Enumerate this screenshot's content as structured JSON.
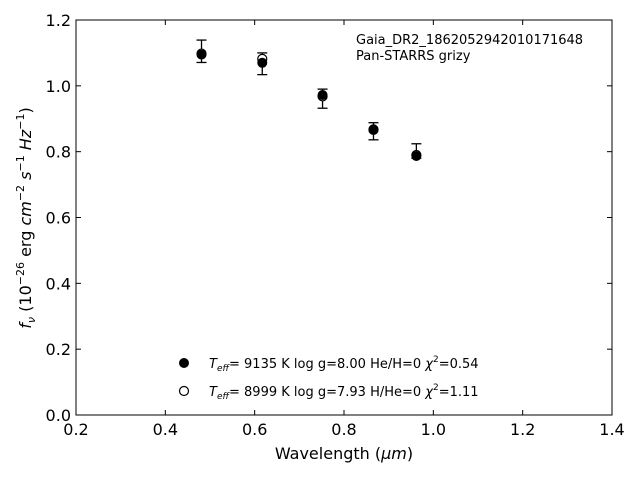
{
  "chart_data": {
    "type": "scatter",
    "xlabel_prefix": "Wavelength (",
    "xlabel_unit": "μm",
    "xlabel_suffix": ")",
    "ylabel_sym": "f",
    "ylabel_sub": "ν",
    "ylabel_pre": " (10",
    "ylabel_exp": "−26",
    "ylabel_erg": " erg ",
    "ylabel_cm": "cm",
    "ylabel_cm_exp": "−2",
    "ylabel_s": "s",
    "ylabel_s_exp": "−1",
    "ylabel_hz": "Hz",
    "ylabel_hz_exp": "−1",
    "ylabel_close": ")",
    "xlim": [
      0.2,
      1.4
    ],
    "ylim": [
      0.0,
      1.2
    ],
    "xticks": [
      "0.2",
      "0.4",
      "0.6",
      "0.8",
      "1.0",
      "1.2",
      "1.4"
    ],
    "yticks": [
      "0.0",
      "0.2",
      "0.4",
      "0.6",
      "0.8",
      "1.0",
      "1.2"
    ],
    "annotation": [
      "Gaia_DR2_1862052942010171648",
      "Pan-STARRS grizy"
    ],
    "series": [
      {
        "marker": "filled-circle",
        "x": [
          0.481,
          0.617,
          0.752,
          0.866,
          0.962
        ],
        "y": [
          1.095,
          1.07,
          0.972,
          0.868,
          0.787
        ]
      },
      {
        "marker": "open-circle",
        "x": [
          0.481,
          0.617,
          0.752,
          0.866,
          0.962
        ],
        "y": [
          1.098,
          1.082,
          0.968,
          0.866,
          0.79
        ]
      }
    ],
    "observed": {
      "x": [
        0.481,
        0.617,
        0.752,
        0.866,
        0.962
      ],
      "y": [
        1.105,
        1.067,
        0.961,
        0.862,
        0.802
      ],
      "err": [
        0.034,
        0.033,
        0.029,
        0.026,
        0.022
      ]
    },
    "legend": [
      {
        "marker": "filled-circle",
        "t": "T",
        "t_sub": "eff",
        "t_rest": "=  9135 K  log g=8.00  He/H=0  ",
        "chi": "χ",
        "chi_exp": "2",
        "chi_rest": "=0.54"
      },
      {
        "marker": "open-circle",
        "t": "T",
        "t_sub": "eff",
        "t_rest": "=  8999 K  log g=7.93  H/He=0  ",
        "chi": "χ",
        "chi_exp": "2",
        "chi_rest": "=1.11"
      }
    ],
    "legend_location": "lower-center",
    "grid": false
  }
}
